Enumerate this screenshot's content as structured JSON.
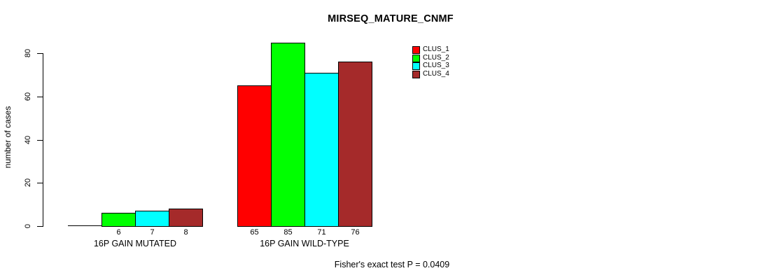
{
  "chart_data": {
    "type": "bar",
    "title": "MIRSEQ_MATURE_CNMF",
    "xlabel": "",
    "ylabel": "number of cases",
    "ylim": [
      0,
      85
    ],
    "yticks": [
      0,
      20,
      40,
      60,
      80
    ],
    "grid": false,
    "legend_position": "top-right-inside",
    "categories": [
      "16P GAIN MUTATED",
      "16P GAIN WILD-TYPE"
    ],
    "series": [
      {
        "name": "CLUS_1",
        "color": "#FF0000",
        "values": [
          0,
          65
        ]
      },
      {
        "name": "CLUS_2",
        "color": "#00FF00",
        "values": [
          6,
          85
        ]
      },
      {
        "name": "CLUS_3",
        "color": "#00FFFF",
        "values": [
          7,
          71
        ]
      },
      {
        "name": "CLUS_4",
        "color": "#A52A2A",
        "values": [
          8,
          76
        ]
      }
    ],
    "bar_value_labels_shown_for_nonzero_only": true,
    "annotation": "Fisher's exact test P = 0.0409",
    "colors": {
      "background": "#FFFFFF",
      "axis": "#000000",
      "text": "#000000",
      "bar_border": "#000000"
    }
  }
}
